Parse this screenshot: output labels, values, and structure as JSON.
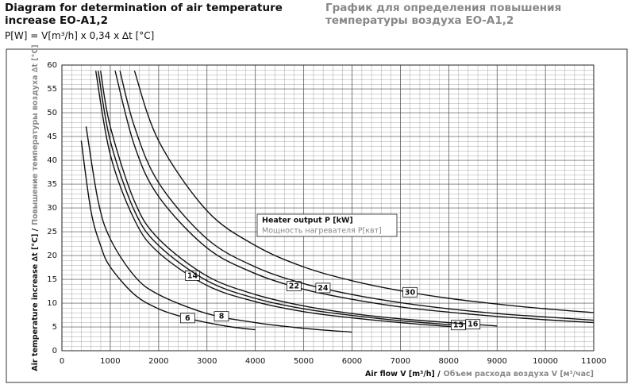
{
  "chart_data": {
    "type": "line",
    "title": "Diagram for determination of air temperature increase EO-A1,2",
    "subtitle": "P[W] = V[m³/h] x 0,34 x ∆t [°C]",
    "title_ru": "График для определения повышения температуры воздуха EO-A1,2",
    "legend_title": "Heater output  P [kW]",
    "legend_title_ru": "Мощность нагревателя  P[квт]",
    "x_label": "Air flow V [m³/h] /",
    "x_label_ru": "Объем расхода воздуха V [м³/час]",
    "y_label": "Air temperature increase ∆t [°C] /",
    "y_label_ru": "Повышение температуры воздуха ∆t [°C]",
    "xlim": [
      0,
      11000
    ],
    "xticks": [
      0,
      1000,
      2000,
      3000,
      4000,
      5000,
      6000,
      7000,
      8000,
      9000,
      10000,
      11000
    ],
    "ylim": [
      0,
      60
    ],
    "yticks": [
      0,
      5,
      10,
      15,
      20,
      25,
      30,
      35,
      40,
      45,
      50,
      55,
      60
    ],
    "grid": true,
    "series": [
      {
        "name": "6",
        "color": "#111111",
        "x": [
          400,
          600,
          800,
          1000,
          1500,
          2000,
          2500,
          3000,
          3500,
          4000
        ],
        "values": [
          44.1,
          29.4,
          22.1,
          17.6,
          11.8,
          8.8,
          7.1,
          5.9,
          5.0,
          4.4
        ]
      },
      {
        "name": "8",
        "color": "#111111",
        "x": [
          500,
          750,
          1000,
          1500,
          2000,
          3000,
          4000,
          5000,
          6000
        ],
        "values": [
          47.1,
          31.4,
          23.5,
          15.7,
          11.8,
          7.8,
          5.9,
          4.7,
          3.9
        ]
      },
      {
        "name": "14",
        "color": "#111111",
        "x": [
          700,
          1000,
          1500,
          2000,
          3000,
          4000,
          5000,
          6000,
          7000,
          8000,
          8500
        ],
        "values": [
          58.8,
          41.2,
          27.5,
          20.6,
          13.7,
          10.3,
          8.2,
          6.9,
          5.9,
          5.1,
          4.8
        ]
      },
      {
        "name": "15",
        "color": "#111111",
        "x": [
          750,
          1000,
          1500,
          2000,
          3000,
          4000,
          5000,
          6000,
          7000,
          8000,
          8500
        ],
        "values": [
          58.8,
          44.1,
          29.4,
          22.1,
          14.7,
          11.0,
          8.8,
          7.4,
          6.3,
          5.5,
          5.2
        ]
      },
      {
        "name": "16",
        "color": "#111111",
        "x": [
          800,
          1000,
          1500,
          2000,
          3000,
          4000,
          5000,
          6000,
          7000,
          8000,
          9000
        ],
        "values": [
          58.8,
          47.1,
          31.4,
          23.5,
          15.7,
          11.8,
          9.4,
          7.8,
          6.7,
          5.9,
          5.2
        ]
      },
      {
        "name": "22",
        "color": "#111111",
        "x": [
          1100,
          1500,
          2000,
          3000,
          4000,
          5000,
          6000,
          7000,
          8000,
          9000,
          10000,
          11000
        ],
        "values": [
          58.8,
          43.1,
          32.4,
          21.6,
          16.2,
          12.9,
          10.8,
          9.2,
          8.1,
          7.2,
          6.5,
          5.9
        ]
      },
      {
        "name": "24",
        "color": "#111111",
        "x": [
          1200,
          1500,
          2000,
          3000,
          4000,
          5000,
          6000,
          7000,
          8000,
          9000,
          10000,
          11000
        ],
        "values": [
          58.8,
          47.1,
          35.3,
          23.5,
          17.6,
          14.1,
          11.8,
          10.1,
          8.8,
          7.8,
          7.1,
          6.4
        ]
      },
      {
        "name": "30",
        "color": "#111111",
        "x": [
          1500,
          2000,
          3000,
          4000,
          5000,
          6000,
          7000,
          8000,
          9000,
          10000,
          11000
        ],
        "values": [
          58.8,
          44.1,
          29.4,
          22.1,
          17.6,
          14.7,
          12.6,
          11.0,
          9.8,
          8.8,
          8.0
        ]
      }
    ]
  }
}
